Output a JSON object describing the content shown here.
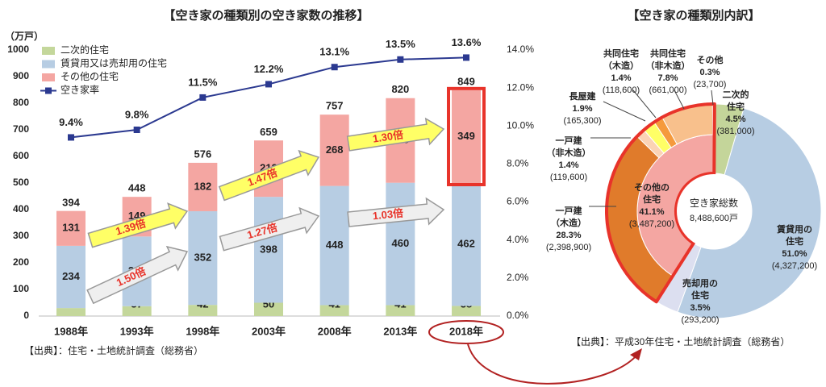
{
  "chart_data": [
    {
      "type": "bar",
      "stacked": true,
      "title": "【空き家の種類別の空き家数の推移】",
      "y_label": "（万戸）",
      "categories": [
        "1988年",
        "1993年",
        "1998年",
        "2003年",
        "2008年",
        "2013年",
        "2018年"
      ],
      "series": [
        {
          "name": "二次的住宅",
          "color": "#c4d79b",
          "values": [
            30,
            37,
            42,
            50,
            41,
            41,
            38
          ]
        },
        {
          "name": "賃貸用又は売却用の住宅",
          "color": "#b7cde3",
          "values": [
            234,
            262,
            352,
            398,
            448,
            460,
            462
          ]
        },
        {
          "name": "その他の住宅",
          "color": "#f4a6a2",
          "values": [
            131,
            149,
            182,
            212,
            268,
            318,
            349
          ]
        },
        {
          "name": "空き家率",
          "type": "line",
          "axis": "y2",
          "color": "#2b3990",
          "values": [
            9.4,
            9.8,
            11.5,
            12.2,
            13.1,
            13.5,
            13.6
          ],
          "value_labels": [
            "9.4%",
            "9.8%",
            "11.5%",
            "12.2%",
            "13.1%",
            "13.5%",
            "13.6%"
          ]
        }
      ],
      "totals": [
        394,
        448,
        576,
        659,
        757,
        820,
        849
      ],
      "ylim": [
        0,
        1000
      ],
      "yticks": [
        0,
        100,
        200,
        300,
        400,
        500,
        600,
        700,
        800,
        900,
        1000
      ],
      "y2lim": [
        0,
        14
      ],
      "y2ticks": [
        {
          "value": 0,
          "label": "0.0%"
        },
        {
          "value": 2,
          "label": "2.0%"
        },
        {
          "value": 4,
          "label": "4.0%"
        },
        {
          "value": 6,
          "label": "6.0%"
        },
        {
          "value": 8,
          "label": "8.0%"
        },
        {
          "value": 10,
          "label": "10.0%"
        },
        {
          "value": 12,
          "label": "12.0%"
        },
        {
          "value": 14,
          "label": "14.0%"
        }
      ],
      "annotations": [
        "1.50倍",
        "1.39倍",
        "1.27倍",
        "1.47倍",
        "1.03倍",
        "1.30倍"
      ],
      "source": "【出典】：住宅・土地統計調査（総務省）"
    },
    {
      "type": "donut",
      "title": "【空き家の種類別内訳】",
      "center_label": "空き家総数",
      "total_label": "8,488,600戸",
      "slices": [
        {
          "name": [
            "二次的",
            "住宅"
          ],
          "value": 4.5,
          "value_label": "4.5%",
          "count_label": "(381,000)",
          "color": "#c4d59a"
        },
        {
          "name": [
            "賃貸用の",
            "住宅"
          ],
          "value": 51.0,
          "value_label": "51.0%",
          "count_label": "(4,327,200)",
          "color": "#b7cde3"
        },
        {
          "name": [
            "売却用の",
            "住宅"
          ],
          "value": 3.5,
          "value_label": "3.5%",
          "count_label": "(293,200)",
          "color": "#dcdff0"
        },
        {
          "name": [
            "その他の",
            "住宅"
          ],
          "value": 41.1,
          "value_label": "41.1%",
          "count_label": "(3,487,200)",
          "color": "#f4a6a2",
          "children": [
            {
              "name": [
                "一戸建",
                "（木造）"
              ],
              "value": 28.3,
              "value_label": "28.3%",
              "count_label": "(2,398,900)",
              "color": "#e07b2b"
            },
            {
              "name": [
                "一戸建",
                "（非木造）"
              ],
              "value": 1.4,
              "value_label": "1.4%",
              "count_label": "(119,600)",
              "color": "#fbd3b5"
            },
            {
              "name": [
                "長屋建"
              ],
              "value": 1.9,
              "value_label": "1.9%",
              "count_label": "(165,300)",
              "color": "#ffff66"
            },
            {
              "name": [
                "共同住宅",
                "（木造）"
              ],
              "value": 1.4,
              "value_label": "1.4%",
              "count_label": "(118,600)",
              "color": "#f59a3c"
            },
            {
              "name": [
                "共同住宅",
                "（非木造）"
              ],
              "value": 7.8,
              "value_label": "7.8%",
              "count_label": "(661,000)",
              "color": "#f8c08c"
            },
            {
              "name": [
                "その他"
              ],
              "value": 0.3,
              "value_label": "0.3%",
              "count_label": "(23,700)",
              "color": "#fde0c5"
            }
          ]
        }
      ],
      "source": "【出典】：平成30年住宅・土地統計調査（総務省）"
    }
  ]
}
